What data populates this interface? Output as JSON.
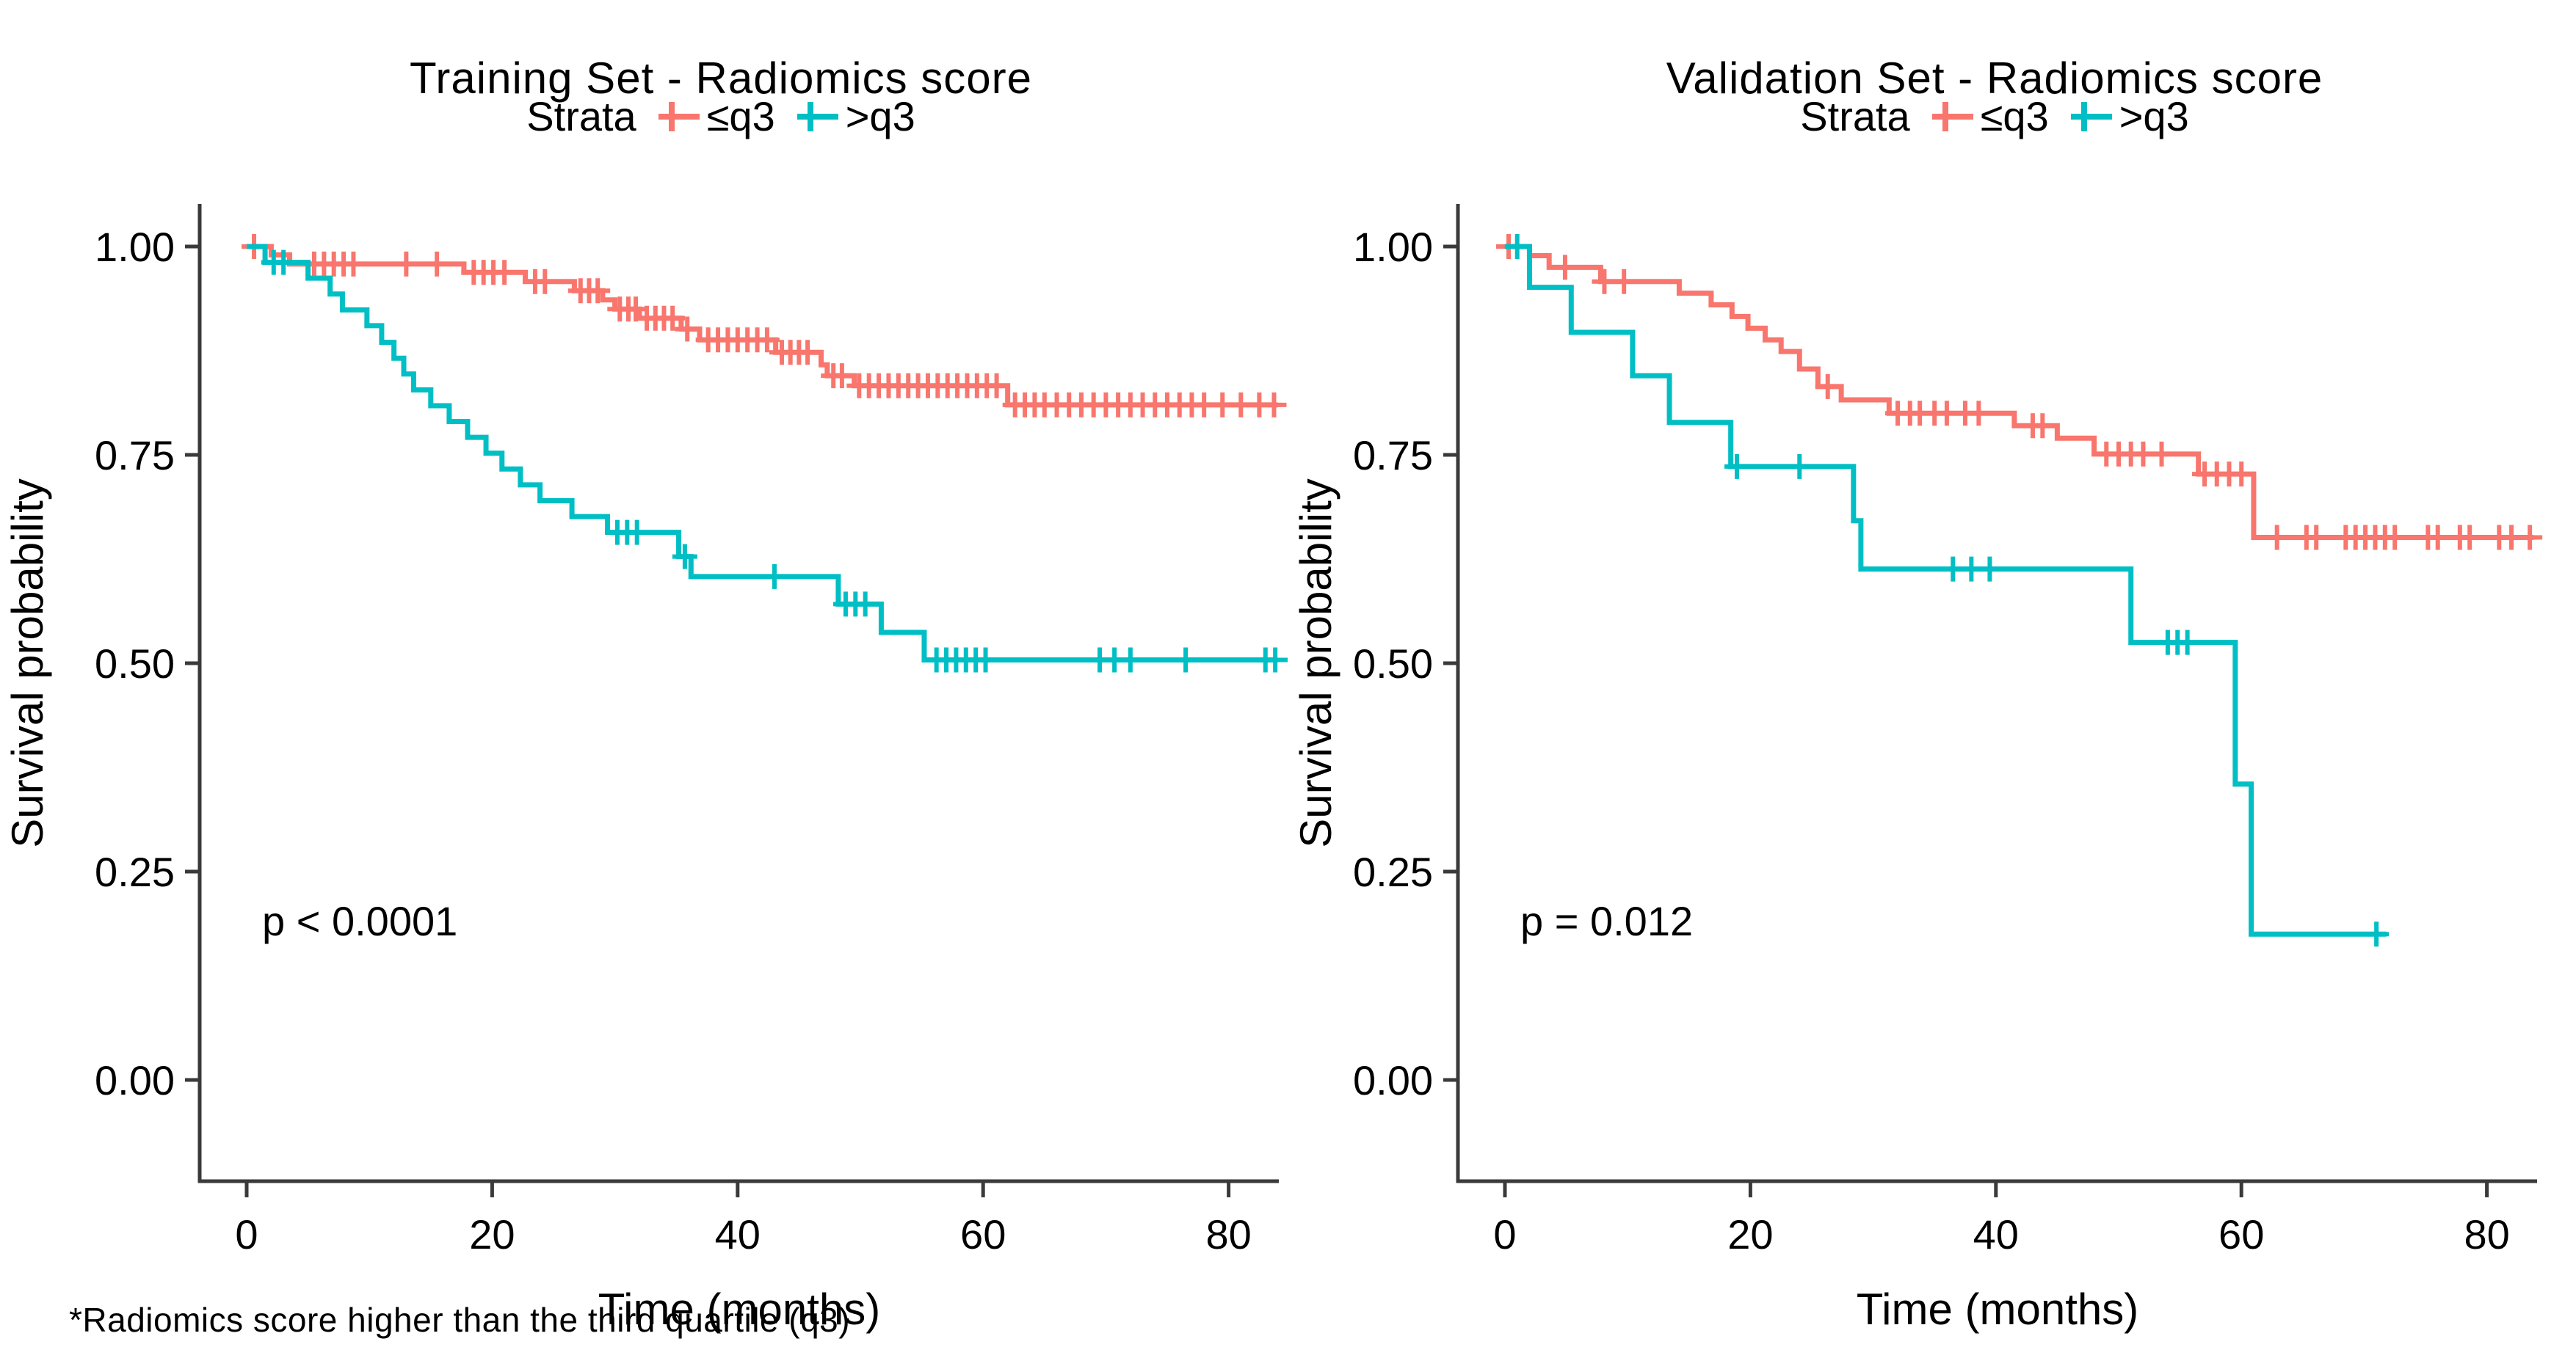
{
  "figure": {
    "footnote": "*Radiomics score higher than the third quartile (q3)"
  },
  "chart_data": [
    {
      "type": "line",
      "subtype": "kaplan-meier-step",
      "title": "Training Set - Radiomics score",
      "legend_title": "Strata",
      "legend_position": "top",
      "grid": false,
      "xlabel": "Time (months)",
      "ylabel": "Survival probability",
      "pvalue": "p < 0.0001",
      "xlim": [
        -4,
        84.5
      ],
      "ylim": [
        0,
        1
      ],
      "xticks": [
        "0",
        "20",
        "40",
        "60",
        "80"
      ],
      "yticks": [
        "0.00",
        "0.25",
        "0.50",
        "0.75",
        "1.00"
      ],
      "series": [
        {
          "name": "≤q3",
          "color": "#F8766D",
          "end": 84,
          "steps": [
            [
              0,
              1.0
            ],
            [
              2,
              0.99
            ],
            [
              3.5,
              0.979
            ],
            [
              17.7,
              0.969
            ],
            [
              22.7,
              0.958
            ],
            [
              26.7,
              0.947
            ],
            [
              29,
              0.936
            ],
            [
              30,
              0.925
            ],
            [
              32,
              0.914
            ],
            [
              35.4,
              0.901
            ],
            [
              36.9,
              0.888
            ],
            [
              43.1,
              0.873
            ],
            [
              46.8,
              0.858
            ],
            [
              47.3,
              0.845
            ],
            [
              49.5,
              0.833
            ],
            [
              62,
              0.81
            ]
          ],
          "censors": [
            [
              0.6,
              1.0
            ],
            [
              5.5,
              0.979
            ],
            [
              6.3,
              0.979
            ],
            [
              7.1,
              0.979
            ],
            [
              7.9,
              0.979
            ],
            [
              8.7,
              0.979
            ],
            [
              13,
              0.979
            ],
            [
              15.5,
              0.979
            ],
            [
              18.5,
              0.969
            ],
            [
              19.3,
              0.969
            ],
            [
              20.1,
              0.969
            ],
            [
              21,
              0.969
            ],
            [
              23.5,
              0.958
            ],
            [
              24.3,
              0.958
            ],
            [
              27.2,
              0.947
            ],
            [
              27.9,
              0.947
            ],
            [
              28.6,
              0.947
            ],
            [
              30.4,
              0.925
            ],
            [
              31.1,
              0.925
            ],
            [
              31.7,
              0.925
            ],
            [
              32.6,
              0.914
            ],
            [
              33.3,
              0.914
            ],
            [
              34,
              0.914
            ],
            [
              34.7,
              0.914
            ],
            [
              35.9,
              0.901
            ],
            [
              37.6,
              0.888
            ],
            [
              38.4,
              0.888
            ],
            [
              39.2,
              0.888
            ],
            [
              40,
              0.888
            ],
            [
              40.8,
              0.888
            ],
            [
              41.6,
              0.888
            ],
            [
              42.4,
              0.888
            ],
            [
              43.6,
              0.873
            ],
            [
              44.3,
              0.873
            ],
            [
              45,
              0.873
            ],
            [
              45.7,
              0.873
            ],
            [
              47.8,
              0.845
            ],
            [
              48.5,
              0.845
            ],
            [
              49.9,
              0.833
            ],
            [
              50.7,
              0.833
            ],
            [
              51.5,
              0.833
            ],
            [
              52.3,
              0.833
            ],
            [
              53.1,
              0.833
            ],
            [
              53.9,
              0.833
            ],
            [
              54.7,
              0.833
            ],
            [
              55.5,
              0.833
            ],
            [
              56.3,
              0.833
            ],
            [
              57.1,
              0.833
            ],
            [
              57.9,
              0.833
            ],
            [
              58.7,
              0.833
            ],
            [
              59.5,
              0.833
            ],
            [
              60.3,
              0.833
            ],
            [
              61.1,
              0.833
            ],
            [
              62.6,
              0.81
            ],
            [
              63.4,
              0.81
            ],
            [
              64.2,
              0.81
            ],
            [
              65,
              0.81
            ],
            [
              66,
              0.81
            ],
            [
              67,
              0.81
            ],
            [
              68,
              0.81
            ],
            [
              69,
              0.81
            ],
            [
              70,
              0.81
            ],
            [
              71,
              0.81
            ],
            [
              72,
              0.81
            ],
            [
              73,
              0.81
            ],
            [
              74,
              0.81
            ],
            [
              75,
              0.81
            ],
            [
              76,
              0.81
            ],
            [
              77,
              0.81
            ],
            [
              78,
              0.81
            ],
            [
              79.5,
              0.81
            ],
            [
              81,
              0.81
            ],
            [
              82.5,
              0.81
            ],
            [
              83.7,
              0.81
            ]
          ]
        },
        {
          "name": ">q3",
          "color": "#00BFC4",
          "end": 84,
          "steps": [
            [
              0,
              1.0
            ],
            [
              1.5,
              0.981
            ],
            [
              5,
              0.962
            ],
            [
              6.8,
              0.943
            ],
            [
              7.8,
              0.924
            ],
            [
              9.8,
              0.905
            ],
            [
              11,
              0.885
            ],
            [
              12,
              0.866
            ],
            [
              12.8,
              0.847
            ],
            [
              13.6,
              0.828
            ],
            [
              15,
              0.809
            ],
            [
              16.5,
              0.79
            ],
            [
              18,
              0.771
            ],
            [
              19.5,
              0.752
            ],
            [
              20.8,
              0.733
            ],
            [
              22.3,
              0.714
            ],
            [
              23.9,
              0.695
            ],
            [
              26.5,
              0.676
            ],
            [
              29.4,
              0.657
            ],
            [
              35.2,
              0.628
            ],
            [
              36.2,
              0.604
            ],
            [
              48.2,
              0.571
            ],
            [
              51.7,
              0.537
            ],
            [
              55.2,
              0.504
            ]
          ],
          "censors": [
            [
              2.2,
              0.981
            ],
            [
              3,
              0.981
            ],
            [
              30.2,
              0.657
            ],
            [
              31,
              0.657
            ],
            [
              31.8,
              0.657
            ],
            [
              35.7,
              0.628
            ],
            [
              43,
              0.604
            ],
            [
              48.8,
              0.571
            ],
            [
              49.6,
              0.571
            ],
            [
              50.4,
              0.571
            ],
            [
              56.2,
              0.504
            ],
            [
              57,
              0.504
            ],
            [
              57.8,
              0.504
            ],
            [
              58.6,
              0.504
            ],
            [
              59.4,
              0.504
            ],
            [
              60.2,
              0.504
            ],
            [
              69.5,
              0.504
            ],
            [
              70.7,
              0.504
            ],
            [
              72,
              0.504
            ],
            [
              76.5,
              0.504
            ],
            [
              83,
              0.504
            ],
            [
              83.8,
              0.504
            ]
          ]
        }
      ]
    },
    {
      "type": "line",
      "subtype": "kaplan-meier-step",
      "title": "Validation Set - Radiomics score",
      "legend_title": "Strata",
      "legend_position": "top",
      "grid": false,
      "xlabel": "Time (months)",
      "ylabel": "Survival probability",
      "pvalue": "p = 0.012",
      "xlim": [
        -4,
        84.5
      ],
      "ylim": [
        0,
        1
      ],
      "xticks": [
        "0",
        "20",
        "40",
        "60",
        "80"
      ],
      "yticks": [
        "0.00",
        "0.25",
        "0.50",
        "0.75",
        "1.00"
      ],
      "series": [
        {
          "name": "≤q3",
          "color": "#F8766D",
          "end": 83.8,
          "steps": [
            [
              0,
              1.0
            ],
            [
              2,
              0.989
            ],
            [
              3.6,
              0.975
            ],
            [
              7.8,
              0.958
            ],
            [
              14.2,
              0.944
            ],
            [
              16.8,
              0.93
            ],
            [
              18.5,
              0.916
            ],
            [
              19.8,
              0.902
            ],
            [
              21.2,
              0.888
            ],
            [
              22.5,
              0.874
            ],
            [
              24,
              0.853
            ],
            [
              25.5,
              0.832
            ],
            [
              27.4,
              0.816
            ],
            [
              31.3,
              0.8
            ],
            [
              41.5,
              0.785
            ],
            [
              45,
              0.77
            ],
            [
              48,
              0.751
            ],
            [
              56.5,
              0.727
            ],
            [
              61,
              0.651
            ]
          ],
          "censors": [
            [
              0.3,
              1.0
            ],
            [
              4.9,
              0.975
            ],
            [
              8.1,
              0.958
            ],
            [
              9.7,
              0.958
            ],
            [
              26.3,
              0.832
            ],
            [
              32,
              0.8
            ],
            [
              33,
              0.8
            ],
            [
              33.8,
              0.8
            ],
            [
              35,
              0.8
            ],
            [
              36,
              0.8
            ],
            [
              37.5,
              0.8
            ],
            [
              38.6,
              0.8
            ],
            [
              43,
              0.785
            ],
            [
              43.8,
              0.785
            ],
            [
              49,
              0.751
            ],
            [
              50,
              0.751
            ],
            [
              51,
              0.751
            ],
            [
              52,
              0.751
            ],
            [
              53.5,
              0.751
            ],
            [
              57,
              0.727
            ],
            [
              58,
              0.727
            ],
            [
              59,
              0.727
            ],
            [
              60,
              0.727
            ],
            [
              62.9,
              0.651
            ],
            [
              65.3,
              0.651
            ],
            [
              66.1,
              0.651
            ],
            [
              68.5,
              0.651
            ],
            [
              69.3,
              0.651
            ],
            [
              70.1,
              0.651
            ],
            [
              70.9,
              0.651
            ],
            [
              71.7,
              0.651
            ],
            [
              72.5,
              0.651
            ],
            [
              75.2,
              0.651
            ],
            [
              76,
              0.651
            ],
            [
              77.8,
              0.651
            ],
            [
              78.6,
              0.651
            ],
            [
              81,
              0.651
            ],
            [
              82,
              0.651
            ],
            [
              83.5,
              0.651
            ]
          ]
        },
        {
          "name": ">q3",
          "color": "#00BFC4",
          "end": 71.8,
          "steps": [
            [
              0,
              1.0
            ],
            [
              2,
              0.951
            ],
            [
              5.4,
              0.897
            ],
            [
              10.4,
              0.845
            ],
            [
              13.4,
              0.789
            ],
            [
              18.4,
              0.736
            ],
            [
              28.4,
              0.671
            ],
            [
              29,
              0.613
            ],
            [
              51,
              0.525
            ],
            [
              59.5,
              0.355
            ],
            [
              60.8,
              0.175
            ]
          ],
          "censors": [
            [
              1,
              1.0
            ],
            [
              18.9,
              0.736
            ],
            [
              24,
              0.736
            ],
            [
              36.5,
              0.613
            ],
            [
              38,
              0.613
            ],
            [
              39.5,
              0.613
            ],
            [
              54,
              0.525
            ],
            [
              54.8,
              0.525
            ],
            [
              55.6,
              0.525
            ],
            [
              71,
              0.175
            ]
          ]
        }
      ]
    }
  ]
}
